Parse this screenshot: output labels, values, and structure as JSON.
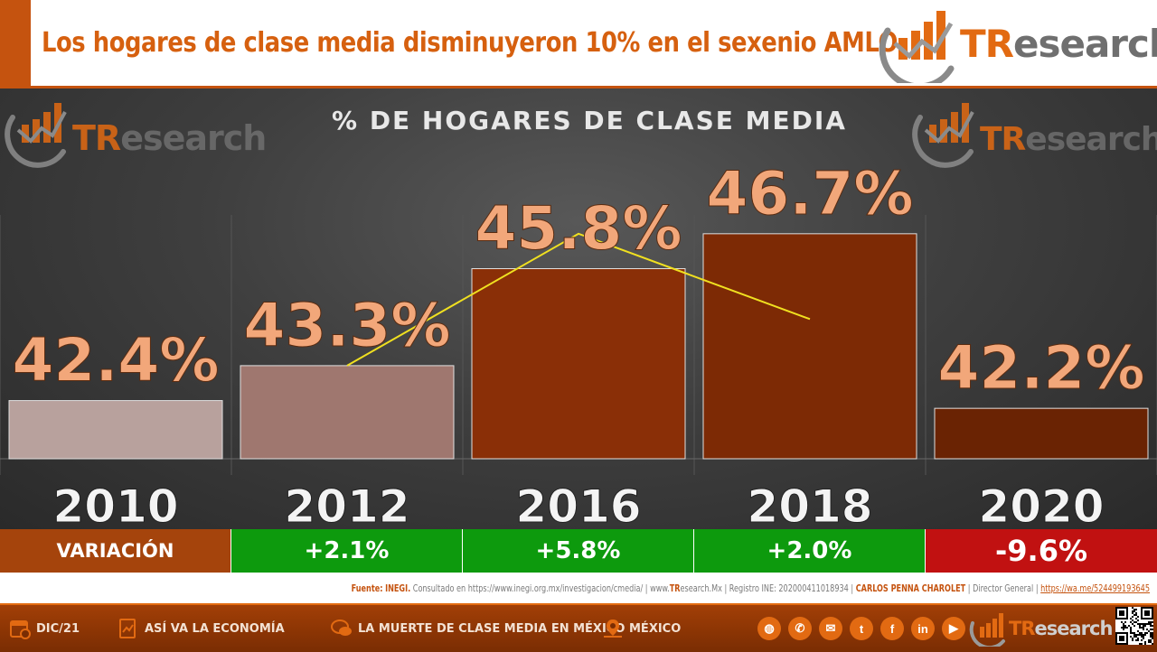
{
  "header": {
    "title": "Los hogares de clase media disminuyeron 10% en el sexenio AMLO",
    "brand_tr": "TR",
    "brand_rest": "esearch"
  },
  "chart_data": {
    "type": "bar",
    "title": "% DE HOGARES DE CLASE MEDIA",
    "categories": [
      "2010",
      "2012",
      "2016",
      "2018",
      "2020"
    ],
    "values": [
      42.4,
      43.3,
      45.8,
      46.7,
      42.2
    ],
    "value_labels": [
      "42.4%",
      "43.3%",
      "45.8%",
      "46.7%",
      "42.2%"
    ],
    "bar_colors": [
      "#b8a19d",
      "#9f776f",
      "#8a2f07",
      "#7d2a05",
      "#6a2303"
    ],
    "line_color": "#f0e020",
    "trend_line_points": [
      43.3,
      46.7,
      44.5
    ],
    "label_color": "#f2a77a"
  },
  "variation": {
    "label": "VARIACIÓN",
    "label_bg": "#a5440c",
    "items": [
      {
        "value": "+2.1%",
        "color": "#0d9a0d"
      },
      {
        "value": "+5.8%",
        "color": "#0d9a0d"
      },
      {
        "value": "+2.0%",
        "color": "#0d9a0d"
      },
      {
        "value": "-9.6%",
        "color": "#c11111"
      }
    ]
  },
  "source": {
    "label": "Fuente:",
    "org": "INEGI.",
    "consulted": "Consultado en https://www.inegi.org.mx/investigacion/cmedia/",
    "site_prefix": "www.",
    "site_tr": "TR",
    "site_rest": "esearch.Mx",
    "registro": "Registro INE: 202000411018934",
    "author": "CARLOS PENNA CHAROLET",
    "role": "Director General",
    "link": "https://wa.me/524499193645"
  },
  "footer": {
    "date": "DIC/21",
    "section": "ASÍ VA LA ECONOMÍA",
    "topic": "LA MUERTE DE CLASE MEDIA EN MÉXICO",
    "place": "MÉXICO",
    "social_icons": [
      "globe-icon",
      "phone-icon",
      "mail-icon",
      "twitter-icon",
      "facebook-icon",
      "linkedin-icon",
      "youtube-icon"
    ],
    "social_glyphs": [
      "◍",
      "✆",
      "✉",
      "t",
      "f",
      "in",
      "▶"
    ]
  }
}
